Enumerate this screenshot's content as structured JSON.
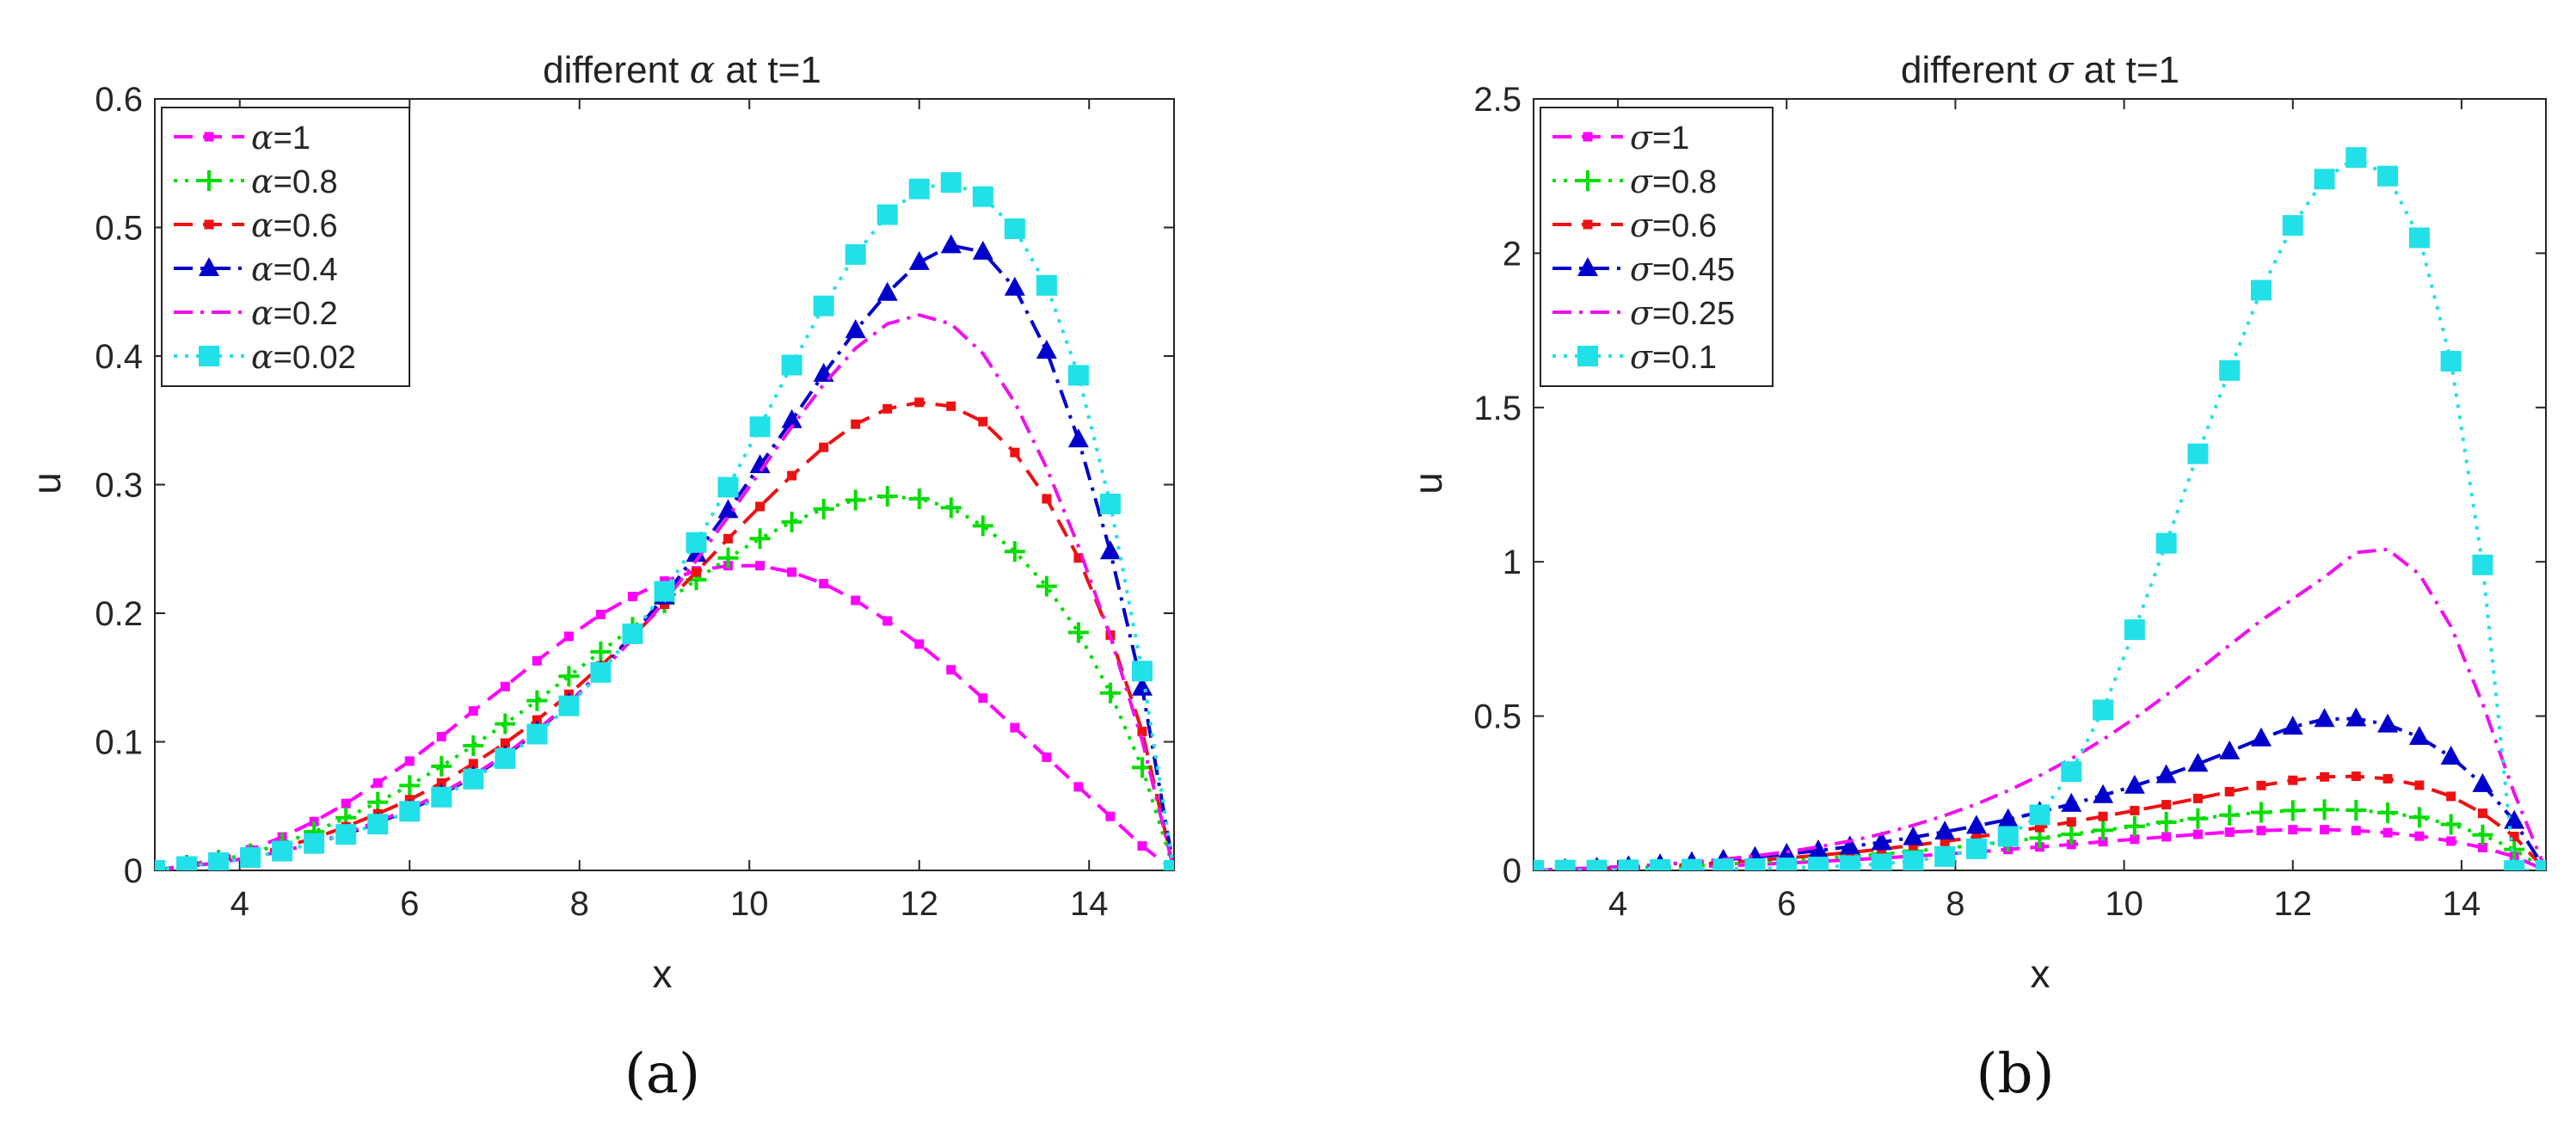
{
  "chart_data": [
    {
      "type": "line",
      "panel_label": "(a)",
      "title_prefix": "different ",
      "title_symbol": "α",
      "title_suffix": " at t=1",
      "xlabel": "x",
      "ylabel": "u",
      "xlim": [
        3,
        15
      ],
      "ylim": [
        0,
        0.6
      ],
      "xticks": [
        "4",
        "6",
        "8",
        "10",
        "12",
        "14"
      ],
      "yticks": [
        "0",
        "0.1",
        "0.2",
        "0.3",
        "0.4",
        "0.5",
        "0.6"
      ],
      "legend_position": "top-left",
      "param_symbol": "α",
      "x": [
        3.0,
        3.375,
        3.75,
        4.125,
        4.5,
        4.875,
        5.25,
        5.625,
        6.0,
        6.375,
        6.75,
        7.125,
        7.5,
        7.875,
        8.25,
        8.625,
        9.0,
        9.375,
        9.75,
        10.125,
        10.5,
        10.875,
        11.25,
        11.625,
        12.0,
        12.375,
        12.75,
        13.125,
        13.5,
        13.875,
        14.25,
        14.625,
        15.0
      ],
      "series": [
        {
          "name": "=1",
          "color": "#ff00ff",
          "dash": "dash",
          "marker": "square-small",
          "values": [
            0.0,
            0.004,
            0.009,
            0.016,
            0.026,
            0.038,
            0.052,
            0.068,
            0.085,
            0.104,
            0.124,
            0.143,
            0.163,
            0.182,
            0.199,
            0.213,
            0.225,
            0.233,
            0.237,
            0.237,
            0.232,
            0.223,
            0.21,
            0.194,
            0.176,
            0.156,
            0.134,
            0.111,
            0.088,
            0.065,
            0.042,
            0.019,
            0.0
          ]
        },
        {
          "name": "=0.8",
          "color": "#00dd00",
          "dash": "dot",
          "marker": "plus",
          "values": [
            0.0,
            0.004,
            0.008,
            0.013,
            0.021,
            0.03,
            0.041,
            0.053,
            0.066,
            0.081,
            0.097,
            0.114,
            0.132,
            0.151,
            0.17,
            0.189,
            0.208,
            0.226,
            0.243,
            0.258,
            0.271,
            0.281,
            0.288,
            0.291,
            0.289,
            0.282,
            0.268,
            0.248,
            0.221,
            0.185,
            0.138,
            0.08,
            0.0
          ]
        },
        {
          "name": "=0.6",
          "color": "#ee1111",
          "dash": "dash",
          "marker": "square-small",
          "values": [
            0.0,
            0.003,
            0.007,
            0.012,
            0.018,
            0.025,
            0.034,
            0.044,
            0.055,
            0.068,
            0.083,
            0.099,
            0.117,
            0.137,
            0.159,
            0.182,
            0.207,
            0.232,
            0.258,
            0.283,
            0.307,
            0.329,
            0.347,
            0.359,
            0.364,
            0.361,
            0.349,
            0.325,
            0.289,
            0.243,
            0.183,
            0.108,
            0.0
          ]
        },
        {
          "name": "=0.4",
          "color": "#0000cc",
          "dash": "dashdot",
          "marker": "triangle",
          "values": [
            0.0,
            0.003,
            0.006,
            0.01,
            0.015,
            0.021,
            0.028,
            0.037,
            0.047,
            0.059,
            0.073,
            0.089,
            0.108,
            0.13,
            0.155,
            0.183,
            0.213,
            0.246,
            0.28,
            0.315,
            0.35,
            0.386,
            0.42,
            0.449,
            0.473,
            0.486,
            0.481,
            0.453,
            0.404,
            0.335,
            0.248,
            0.142,
            0.0
          ]
        },
        {
          "name": "=0.2",
          "color": "#ee11ee",
          "dash": "dashdot",
          "marker": "none",
          "values": [
            0.0,
            0.003,
            0.006,
            0.01,
            0.015,
            0.021,
            0.029,
            0.038,
            0.048,
            0.06,
            0.074,
            0.09,
            0.109,
            0.13,
            0.154,
            0.18,
            0.209,
            0.241,
            0.275,
            0.31,
            0.345,
            0.378,
            0.406,
            0.425,
            0.432,
            0.425,
            0.402,
            0.364,
            0.313,
            0.252,
            0.182,
            0.101,
            0.0
          ]
        },
        {
          "name": "=0.02",
          "color": "#22e0e8",
          "dash": "dot",
          "marker": "square-large",
          "values": [
            0.0,
            0.003,
            0.006,
            0.01,
            0.015,
            0.021,
            0.028,
            0.036,
            0.046,
            0.057,
            0.071,
            0.087,
            0.106,
            0.128,
            0.154,
            0.184,
            0.217,
            0.255,
            0.298,
            0.345,
            0.393,
            0.439,
            0.479,
            0.51,
            0.53,
            0.535,
            0.524,
            0.499,
            0.455,
            0.385,
            0.285,
            0.155,
            0.0
          ]
        }
      ]
    },
    {
      "type": "line",
      "panel_label": "(b)",
      "title_prefix": "different ",
      "title_symbol": "σ",
      "title_suffix": " at t=1",
      "xlabel": "x",
      "ylabel": "u",
      "xlim": [
        3,
        15
      ],
      "ylim": [
        0,
        2.5
      ],
      "xticks": [
        "4",
        "6",
        "8",
        "10",
        "12",
        "14"
      ],
      "yticks": [
        "0",
        "0.5",
        "1",
        "1.5",
        "2",
        "2.5"
      ],
      "legend_position": "top-left",
      "param_symbol": "σ",
      "x": [
        3.0,
        3.375,
        3.75,
        4.125,
        4.5,
        4.875,
        5.25,
        5.625,
        6.0,
        6.375,
        6.75,
        7.125,
        7.5,
        7.875,
        8.25,
        8.625,
        9.0,
        9.375,
        9.75,
        10.125,
        10.5,
        10.875,
        11.25,
        11.625,
        12.0,
        12.375,
        12.75,
        13.125,
        13.5,
        13.875,
        14.25,
        14.625,
        15.0
      ],
      "series": [
        {
          "name": "=1",
          "color": "#ff00ff",
          "dash": "dash",
          "marker": "square-small",
          "values": [
            0.0,
            0.002,
            0.004,
            0.006,
            0.009,
            0.012,
            0.015,
            0.019,
            0.024,
            0.029,
            0.034,
            0.04,
            0.046,
            0.053,
            0.06,
            0.068,
            0.076,
            0.084,
            0.093,
            0.101,
            0.109,
            0.117,
            0.124,
            0.129,
            0.132,
            0.132,
            0.129,
            0.122,
            0.111,
            0.095,
            0.074,
            0.045,
            0.0
          ]
        },
        {
          "name": "=0.8",
          "color": "#00dd00",
          "dash": "dot",
          "marker": "plus",
          "values": [
            0.0,
            0.002,
            0.005,
            0.008,
            0.011,
            0.015,
            0.02,
            0.025,
            0.031,
            0.038,
            0.045,
            0.053,
            0.062,
            0.072,
            0.082,
            0.093,
            0.105,
            0.117,
            0.13,
            0.143,
            0.156,
            0.168,
            0.179,
            0.188,
            0.194,
            0.197,
            0.195,
            0.187,
            0.172,
            0.149,
            0.115,
            0.068,
            0.0
          ]
        },
        {
          "name": "=0.6",
          "color": "#ee1111",
          "dash": "dash",
          "marker": "square-small",
          "values": [
            0.0,
            0.003,
            0.006,
            0.01,
            0.014,
            0.019,
            0.025,
            0.032,
            0.04,
            0.049,
            0.058,
            0.069,
            0.081,
            0.094,
            0.108,
            0.123,
            0.139,
            0.157,
            0.175,
            0.194,
            0.213,
            0.233,
            0.255,
            0.275,
            0.292,
            0.303,
            0.305,
            0.297,
            0.276,
            0.24,
            0.185,
            0.11,
            0.0
          ]
        },
        {
          "name": "=0.45",
          "color": "#0000cc",
          "dash": "dashdot",
          "marker": "triangle",
          "values": [
            0.0,
            0.004,
            0.008,
            0.013,
            0.019,
            0.026,
            0.034,
            0.043,
            0.053,
            0.064,
            0.077,
            0.091,
            0.107,
            0.125,
            0.144,
            0.165,
            0.189,
            0.215,
            0.243,
            0.274,
            0.308,
            0.345,
            0.385,
            0.427,
            0.465,
            0.49,
            0.492,
            0.472,
            0.432,
            0.368,
            0.279,
            0.16,
            0.0
          ]
        },
        {
          "name": "=0.25",
          "color": "#ee11ee",
          "dash": "dashdot",
          "marker": "none",
          "values": [
            0.0,
            0.004,
            0.008,
            0.013,
            0.019,
            0.027,
            0.036,
            0.047,
            0.06,
            0.076,
            0.095,
            0.118,
            0.146,
            0.178,
            0.215,
            0.258,
            0.307,
            0.362,
            0.424,
            0.493,
            0.568,
            0.648,
            0.73,
            0.81,
            0.88,
            0.95,
            1.03,
            1.04,
            0.96,
            0.79,
            0.54,
            0.25,
            0.0
          ]
        },
        {
          "name": "=0.1",
          "color": "#22e0e8",
          "dash": "dot",
          "marker": "square-large",
          "values": [
            0.0,
            0.001,
            0.001,
            0.002,
            0.003,
            0.004,
            0.005,
            0.006,
            0.008,
            0.011,
            0.015,
            0.021,
            0.03,
            0.045,
            0.07,
            0.11,
            0.18,
            0.32,
            0.52,
            0.78,
            1.06,
            1.35,
            1.62,
            1.88,
            2.09,
            2.24,
            2.31,
            2.25,
            2.05,
            1.65,
            0.99,
            0.0,
            0.0
          ]
        }
      ]
    }
  ]
}
